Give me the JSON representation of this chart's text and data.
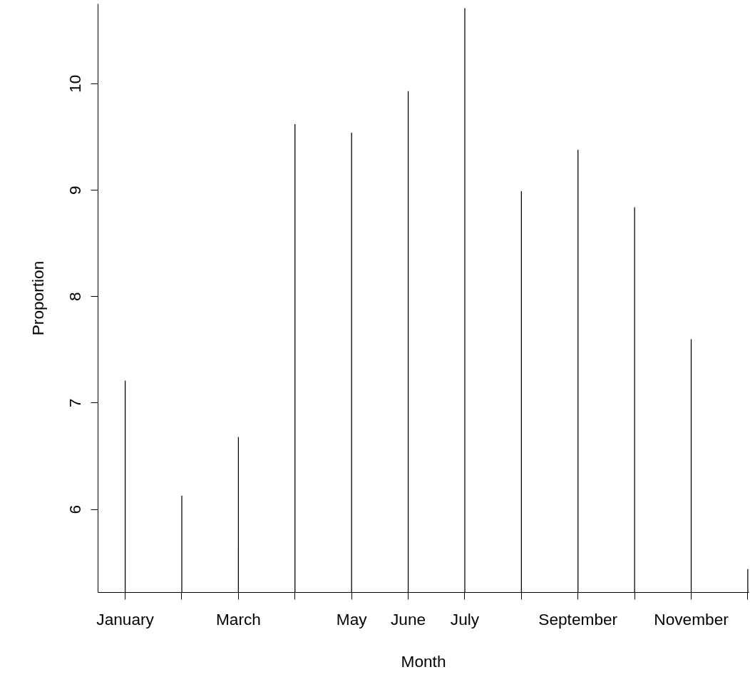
{
  "chart_data": {
    "type": "bar",
    "xlabel": "Month",
    "ylabel": "Proportion",
    "categories": [
      "January",
      null,
      "March",
      null,
      "May",
      "June",
      "July",
      null,
      "September",
      null,
      "November",
      null
    ],
    "values": [
      7.21,
      6.13,
      6.68,
      9.62,
      9.54,
      9.93,
      10.71,
      8.99,
      9.38,
      8.84,
      7.6,
      5.44
    ],
    "color": "#000000",
    "ylim": [
      5.22,
      10.75
    ],
    "yticks": [
      6,
      7,
      8,
      9,
      10
    ],
    "grid": false
  }
}
